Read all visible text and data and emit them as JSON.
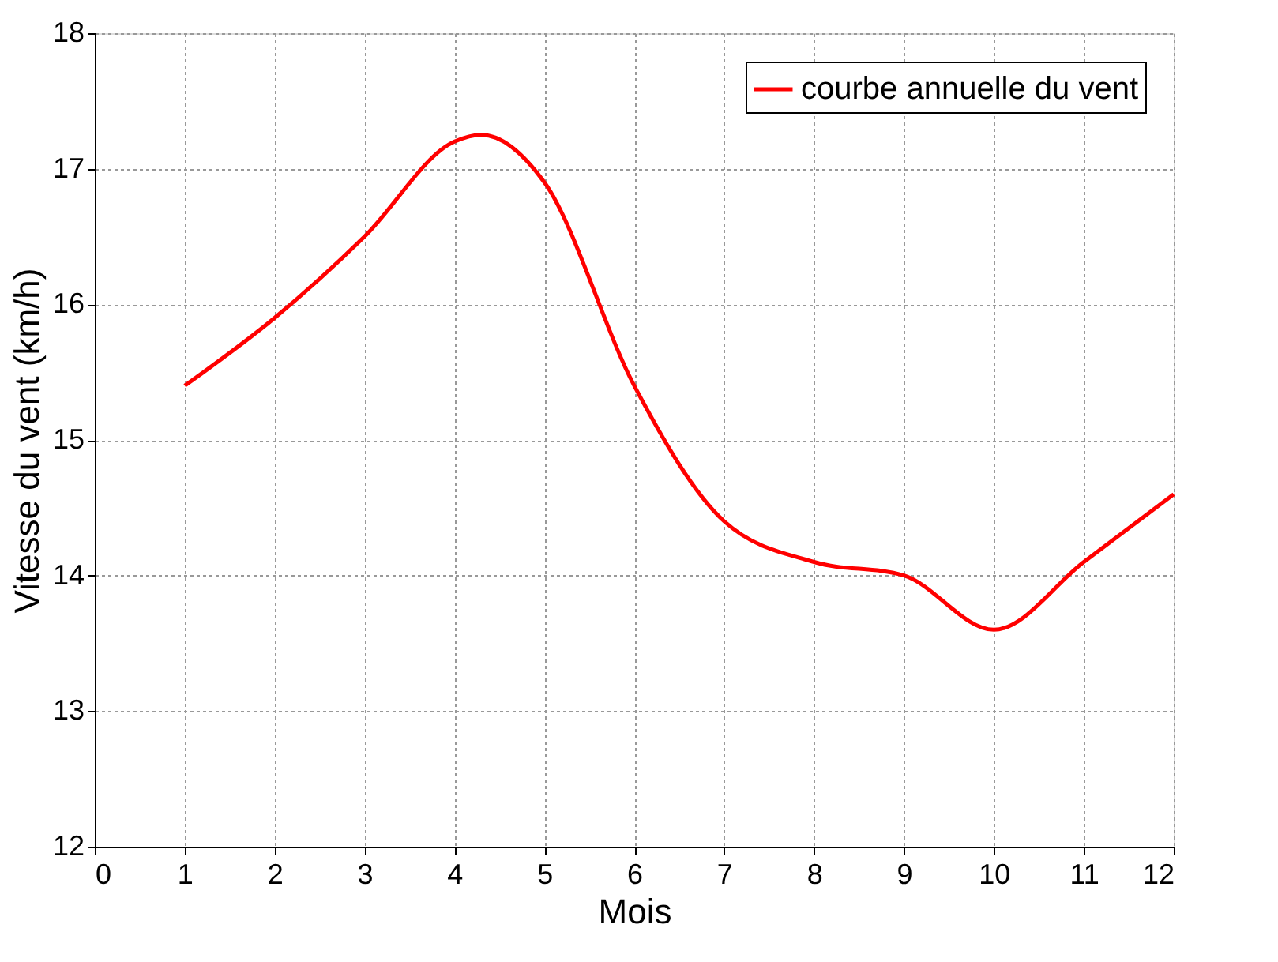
{
  "chart_data": {
    "type": "line",
    "xlabel": "Mois",
    "ylabel": "Vitesse du vent (km/h)",
    "xlim": [
      0,
      12
    ],
    "xticks": [
      0,
      1,
      2,
      3,
      4,
      5,
      6,
      7,
      8,
      9,
      10,
      11,
      12
    ],
    "ylim": [
      12,
      18
    ],
    "yticks": [
      12,
      13,
      14,
      15,
      16,
      17,
      18
    ],
    "grid": true,
    "legend": "top right",
    "marker": "none",
    "line_style": "solid",
    "series": [
      {
        "name": "courbe annuelle du vent",
        "color": "#ff0000",
        "x": [
          1,
          2,
          3,
          4,
          4.3,
          5,
          6,
          7,
          8,
          9,
          10,
          11,
          12
        ],
        "values": [
          15.4,
          15.9,
          16.5,
          17.2,
          17.25,
          16.9,
          15.4,
          14.4,
          14.1,
          14.0,
          13.6,
          14.1,
          14.6
        ]
      }
    ]
  }
}
